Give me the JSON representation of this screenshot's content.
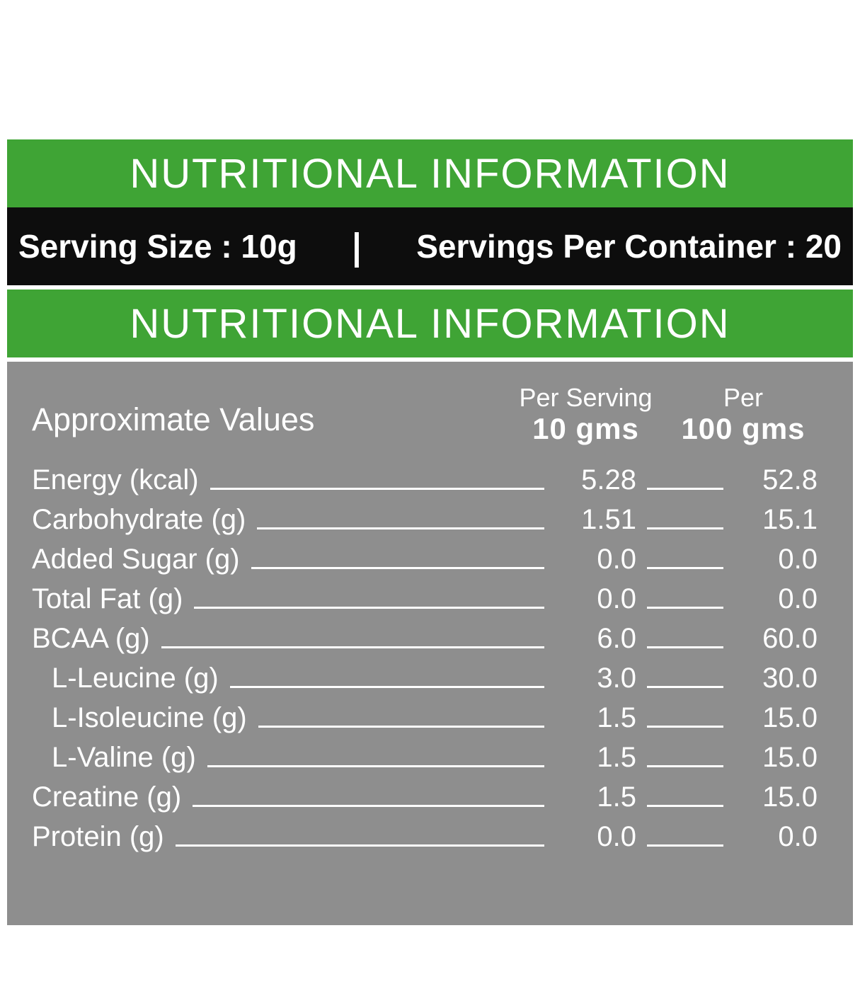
{
  "colors": {
    "green": "#3fa435",
    "black": "#0d0d0d",
    "gray": "#8e8e8e"
  },
  "banner_top": {
    "title": "NUTRITIONAL INFORMATION"
  },
  "serving_bar": {
    "serving_size": "Serving Size : 10g",
    "separator": "|",
    "servings_per_container": "Servings Per Container : 20"
  },
  "banner_second": {
    "title": "NUTRITIONAL INFORMATION"
  },
  "table": {
    "header": {
      "label": "Approximate Values",
      "per_serving_line1": "Per Serving",
      "per_serving_line2": "10 gms",
      "per_100_line1": "Per",
      "per_100_line2": "100 gms"
    },
    "rows": [
      {
        "label": "Energy  (kcal)",
        "per_serving": "5.28",
        "per_100": "52.8",
        "indent": false
      },
      {
        "label": "Carbohydrate (g)",
        "per_serving": "1.51",
        "per_100": "15.1",
        "indent": false
      },
      {
        "label": "Added Sugar (g)",
        "per_serving": "0.0",
        "per_100": "0.0",
        "indent": false
      },
      {
        "label": "Total Fat (g)",
        "per_serving": "0.0",
        "per_100": "0.0",
        "indent": false
      },
      {
        "label": "BCAA (g)",
        "per_serving": "6.0",
        "per_100": "60.0",
        "indent": false
      },
      {
        "label": "L-Leucine (g)",
        "per_serving": "3.0",
        "per_100": "30.0",
        "indent": true
      },
      {
        "label": "L-Isoleucine (g)",
        "per_serving": "1.5",
        "per_100": "15.0",
        "indent": true
      },
      {
        "label": "L-Valine (g)",
        "per_serving": "1.5",
        "per_100": "15.0",
        "indent": true
      },
      {
        "label": "Creatine (g)",
        "per_serving": "1.5",
        "per_100": "15.0",
        "indent": false
      },
      {
        "label": "Protein (g)",
        "per_serving": "0.0",
        "per_100": "0.0",
        "indent": false
      }
    ]
  }
}
